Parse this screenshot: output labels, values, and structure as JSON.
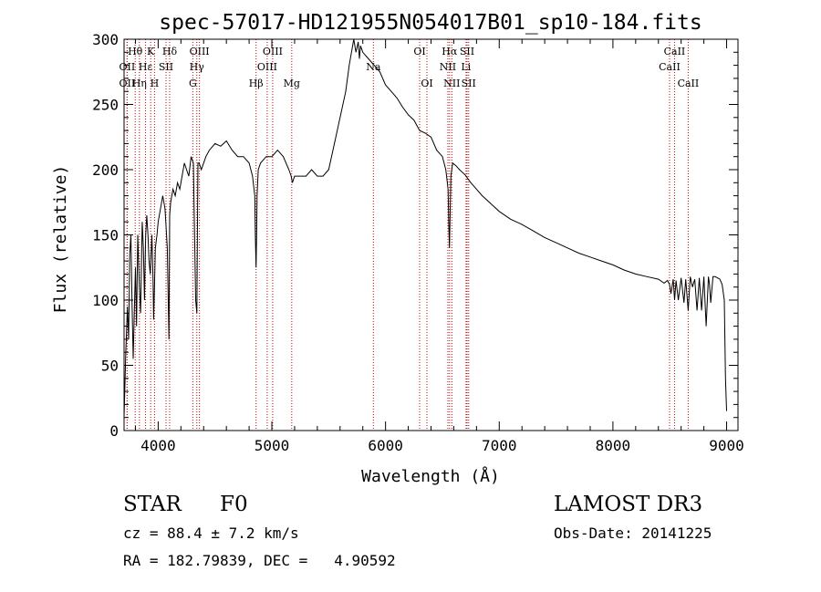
{
  "chart_data": {
    "type": "line",
    "title": "spec-57017-HD121955N054017B01_sp10-184.fits",
    "xlabel": "Wavelength (Å)",
    "ylabel": "Flux (relative)",
    "xlim": [
      3700,
      9100
    ],
    "ylim": [
      0,
      300
    ],
    "xticks": [
      4000,
      5000,
      6000,
      7000,
      8000,
      9000
    ],
    "yticks": [
      0,
      50,
      100,
      150,
      200,
      250,
      300
    ],
    "grid": false,
    "series": [
      {
        "name": "flux",
        "x": [
          3700,
          3715,
          3730,
          3740,
          3750,
          3760,
          3770,
          3780,
          3790,
          3800,
          3810,
          3820,
          3835,
          3845,
          3860,
          3870,
          3880,
          3890,
          3900,
          3910,
          3920,
          3930,
          3945,
          3955,
          3960,
          3968,
          3975,
          3990,
          4000,
          4020,
          4040,
          4060,
          4080,
          4095,
          4101,
          4110,
          4130,
          4150,
          4170,
          4190,
          4210,
          4230,
          4250,
          4270,
          4290,
          4310,
          4320,
          4330,
          4340,
          4345,
          4350,
          4360,
          4380,
          4400,
          4420,
          4450,
          4480,
          4500,
          4550,
          4600,
          4650,
          4700,
          4750,
          4800,
          4830,
          4850,
          4855,
          4861,
          4865,
          4870,
          4880,
          4900,
          4950,
          5000,
          5050,
          5100,
          5150,
          5170,
          5180,
          5200,
          5250,
          5300,
          5350,
          5400,
          5450,
          5500,
          5550,
          5600,
          5650,
          5680,
          5700,
          5720,
          5740,
          5760,
          5770,
          5780,
          5800,
          5850,
          5900,
          5950,
          6000,
          6050,
          6100,
          6150,
          6200,
          6250,
          6300,
          6350,
          6400,
          6450,
          6500,
          6530,
          6550,
          6556,
          6562,
          6568,
          6575,
          6590,
          6620,
          6650,
          6700,
          6750,
          6800,
          6850,
          6900,
          6950,
          7000,
          7100,
          7200,
          7300,
          7400,
          7500,
          7600,
          7700,
          7800,
          7900,
          8000,
          8100,
          8200,
          8300,
          8400,
          8450,
          8480,
          8498,
          8510,
          8530,
          8542,
          8555,
          8575,
          8600,
          8625,
          8640,
          8662,
          8680,
          8700,
          8720,
          8740,
          8760,
          8780,
          8800,
          8820,
          8840,
          8850,
          8860,
          8880,
          8900,
          8920,
          8940,
          8960,
          8980,
          8990,
          9000
        ],
        "y": [
          10,
          60,
          95,
          70,
          135,
          150,
          100,
          55,
          90,
          125,
          80,
          150,
          110,
          90,
          160,
          140,
          100,
          150,
          165,
          150,
          130,
          120,
          150,
          115,
          85,
          112,
          140,
          150,
          160,
          170,
          180,
          170,
          140,
          70,
          165,
          175,
          185,
          180,
          190,
          185,
          195,
          205,
          200,
          195,
          210,
          205,
          150,
          100,
          90,
          150,
          205,
          205,
          200,
          205,
          210,
          215,
          218,
          220,
          218,
          222,
          215,
          210,
          210,
          205,
          195,
          180,
          150,
          125,
          145,
          180,
          200,
          205,
          210,
          210,
          215,
          210,
          200,
          195,
          190,
          195,
          195,
          195,
          200,
          195,
          195,
          200,
          220,
          240,
          260,
          280,
          290,
          300,
          290,
          298,
          285,
          295,
          290,
          285,
          280,
          275,
          265,
          260,
          255,
          248,
          242,
          238,
          230,
          228,
          225,
          215,
          210,
          200,
          185,
          160,
          140,
          165,
          195,
          205,
          203,
          200,
          196,
          190,
          185,
          180,
          176,
          172,
          168,
          162,
          158,
          153,
          148,
          144,
          140,
          136,
          133,
          130,
          127,
          123,
          120,
          118,
          116,
          113,
          115,
          112,
          105,
          116,
          100,
          115,
          100,
          117,
          98,
          116,
          92,
          118,
          110,
          116,
          92,
          117,
          92,
          118,
          80,
          118,
          112,
          98,
          118,
          118,
          117,
          116,
          112,
          100,
          40,
          15
        ]
      }
    ],
    "lines": [
      {
        "name": "Hθ",
        "x": 3798,
        "row": 0
      },
      {
        "name": "OII",
        "x": 3727,
        "row": 1
      },
      {
        "name": "OII",
        "x": 3727,
        "row": 2
      },
      {
        "name": "Hε",
        "x": 3889,
        "row": 1
      },
      {
        "name": "Hη",
        "x": 3835,
        "row": 2
      },
      {
        "name": "K",
        "x": 3934,
        "row": 0
      },
      {
        "name": "SII",
        "x": 4069,
        "row": 1
      },
      {
        "name": "H",
        "x": 3968,
        "row": 2
      },
      {
        "name": "Hδ",
        "x": 4101,
        "row": 0
      },
      {
        "name": "OIII",
        "x": 4363,
        "row": 0
      },
      {
        "name": "Hγ",
        "x": 4340,
        "row": 1
      },
      {
        "name": "G",
        "x": 4305,
        "row": 2
      },
      {
        "name": "Hβ",
        "x": 4861,
        "row": 2
      },
      {
        "name": "OIII",
        "x": 5007,
        "row": 0
      },
      {
        "name": "OIII",
        "x": 4959,
        "row": 1
      },
      {
        "name": "Mg",
        "x": 5175,
        "row": 2
      },
      {
        "name": "Na",
        "x": 5893,
        "row": 1
      },
      {
        "name": "OI",
        "x": 6300,
        "row": 0
      },
      {
        "name": "OI",
        "x": 6364,
        "row": 2
      },
      {
        "name": "Hα",
        "x": 6563,
        "row": 0
      },
      {
        "name": "NII",
        "x": 6548,
        "row": 1
      },
      {
        "name": "NII",
        "x": 6583,
        "row": 2
      },
      {
        "name": "SII",
        "x": 6717,
        "row": 0
      },
      {
        "name": "Li",
        "x": 6708,
        "row": 1
      },
      {
        "name": "SII",
        "x": 6731,
        "row": 2
      },
      {
        "name": "CaII",
        "x": 8542,
        "row": 0
      },
      {
        "name": "CaII",
        "x": 8498,
        "row": 1
      },
      {
        "name": "CaII",
        "x": 8662,
        "row": 2
      }
    ]
  },
  "info": {
    "object_class": "STAR",
    "subclass": "F0",
    "survey": "LAMOST DR3",
    "redshift": "cz = 88.4 ± 7.2 km/s",
    "obs_date": "Obs-Date: 20141225",
    "coords": "RA = 182.79839, DEC =   4.90592"
  },
  "colors": {
    "spectrum": "#000000",
    "line_marker": "#cc0000"
  }
}
